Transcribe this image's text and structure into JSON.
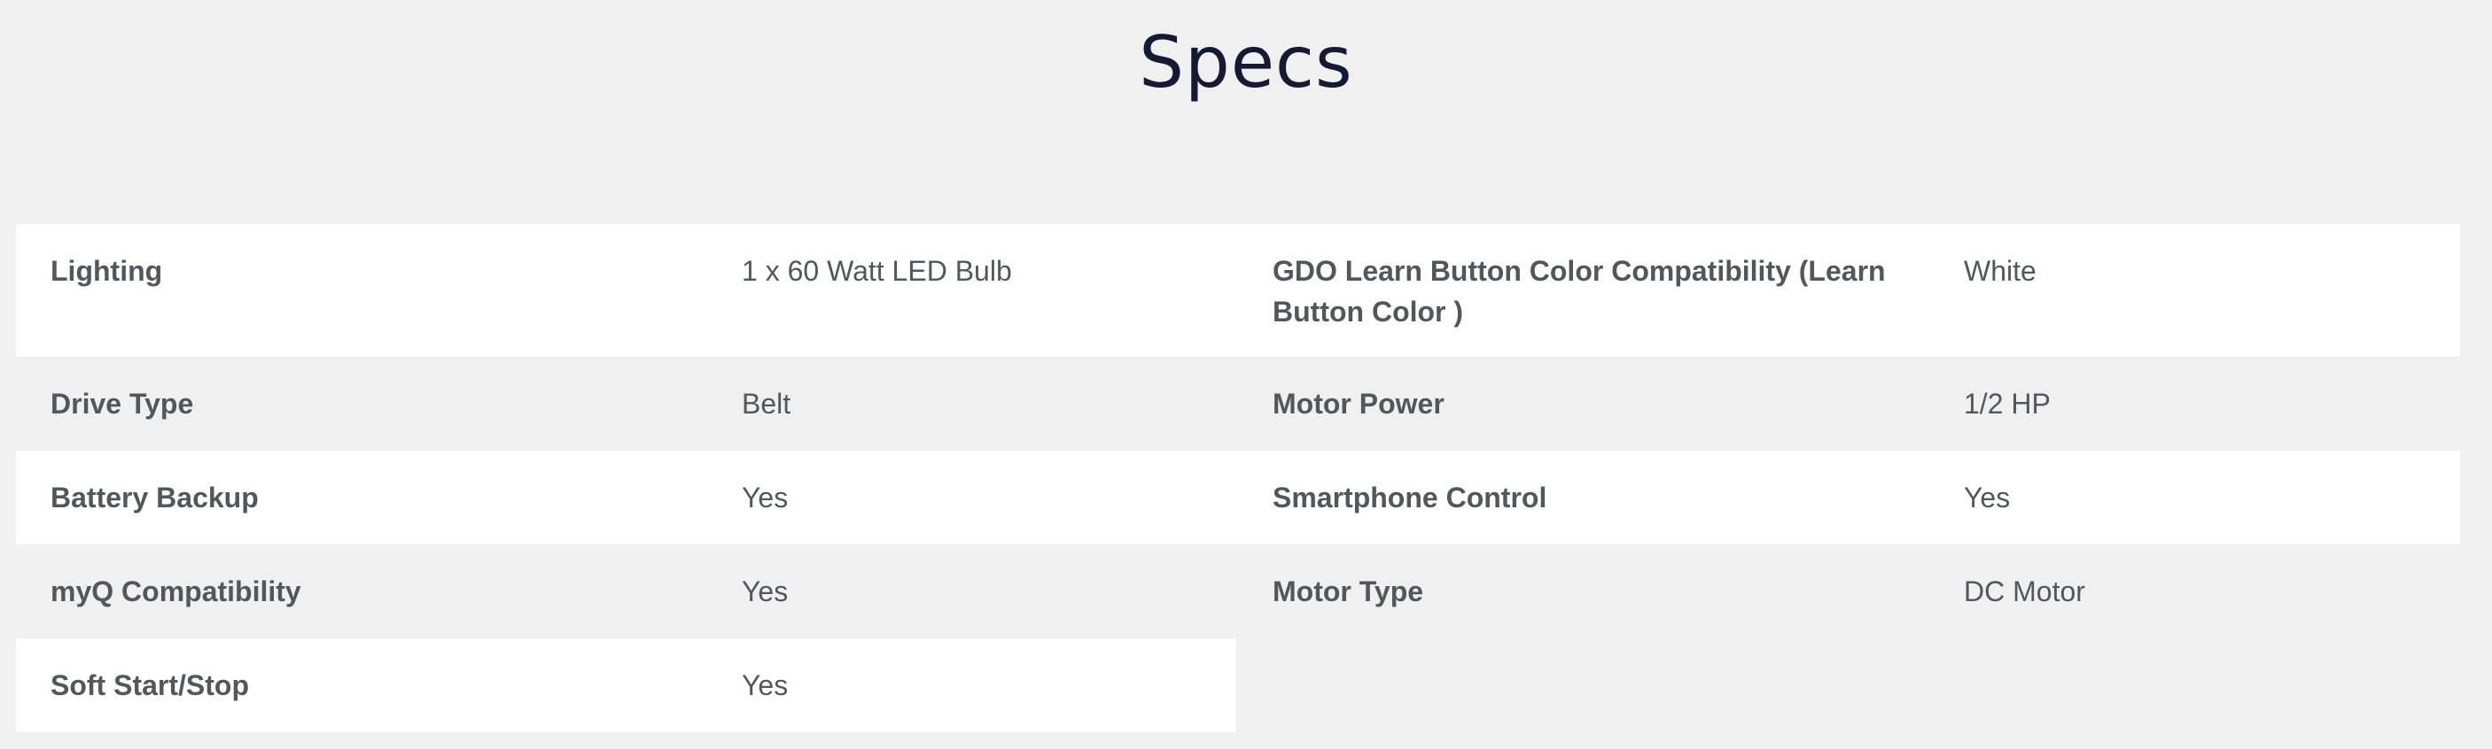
{
  "title": "Specs",
  "rows": [
    {
      "label1": "Lighting",
      "value1": "1 x 60 Watt LED Bulb",
      "label2": "GDO Learn Button Color Compatibility (Learn Button Color )",
      "value2": "White"
    },
    {
      "label1": "Drive Type",
      "value1": "Belt",
      "label2": "Motor Power",
      "value2": "1/2 HP"
    },
    {
      "label1": "Battery Backup",
      "value1": "Yes",
      "label2": "Smartphone Control",
      "value2": "Yes"
    },
    {
      "label1": "myQ Compatibility",
      "value1": "Yes",
      "label2": "Motor Type",
      "value2": "DC Motor"
    },
    {
      "label1": "Soft Start/Stop",
      "value1": "Yes"
    }
  ]
}
